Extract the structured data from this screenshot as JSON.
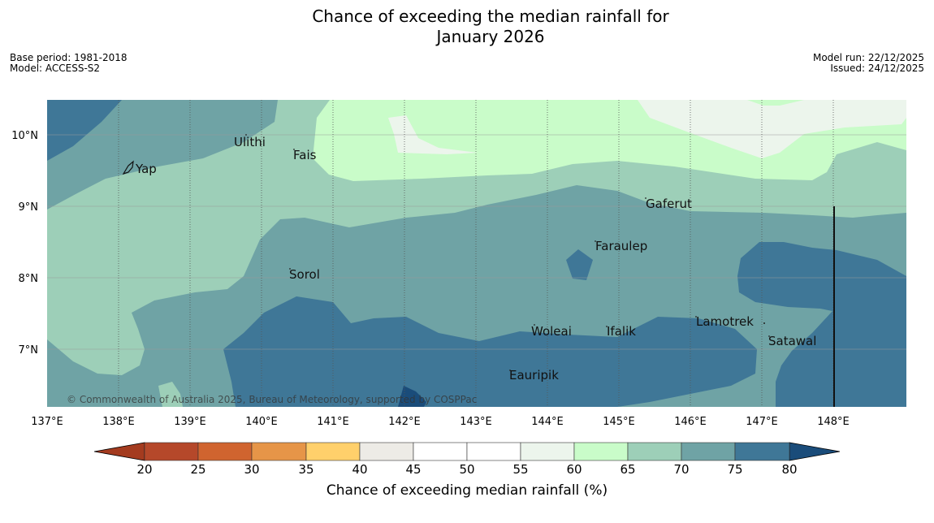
{
  "title_line1": "Chance of exceeding the median rainfall for",
  "title_line2": "January 2026",
  "meta_left": [
    "Base period: 1981-2018",
    "Model: ACCESS-S2"
  ],
  "meta_right": [
    "Model run: 22/12/2025",
    "Issued: 24/12/2025"
  ],
  "copyright": "© Commonwealth of Australia 2025, Bureau of Meteorology, supported by COSPPac",
  "lon_ticks": [
    "137°E",
    "138°E",
    "139°E",
    "140°E",
    "141°E",
    "142°E",
    "143°E",
    "144°E",
    "145°E",
    "146°E",
    "147°E",
    "148°E"
  ],
  "lat_ticks": [
    "10°N",
    "9°N",
    "8°N",
    "7°N"
  ],
  "places": [
    "Yap",
    "Ulithi",
    "Fais",
    "Gaferut",
    "Faraulep",
    "Sorol",
    "Woleai",
    "Ifalik",
    "Lamotrek",
    "Satawal",
    "Eauripik"
  ],
  "colorbar": {
    "label": "Chance of exceeding median rainfall (%)",
    "ticks": [
      "20",
      "25",
      "30",
      "35",
      "40",
      "45",
      "50",
      "55",
      "60",
      "65",
      "70",
      "75",
      "80"
    ],
    "under_color": "#A43B1F",
    "over_color": "#1A4C7A",
    "band_colors": [
      "#B5482A",
      "#D0642F",
      "#E69548",
      "#FFD06B",
      "#EDEBE6",
      "#FFFFFF",
      "#FFFFFF",
      "#ECF5EC",
      "#C9FCC9",
      "#9DCFB8",
      "#6FA3A5",
      "#3F7797"
    ]
  },
  "map_colors": {
    "c_55_60": "#ECF5EC",
    "c_60_65": "#C9FCC9",
    "c_65_70": "#9DCFB8",
    "c_70_75": "#6FA3A5",
    "c_75_80": "#3F7797",
    "c_80p": "#1A4C7A"
  }
}
